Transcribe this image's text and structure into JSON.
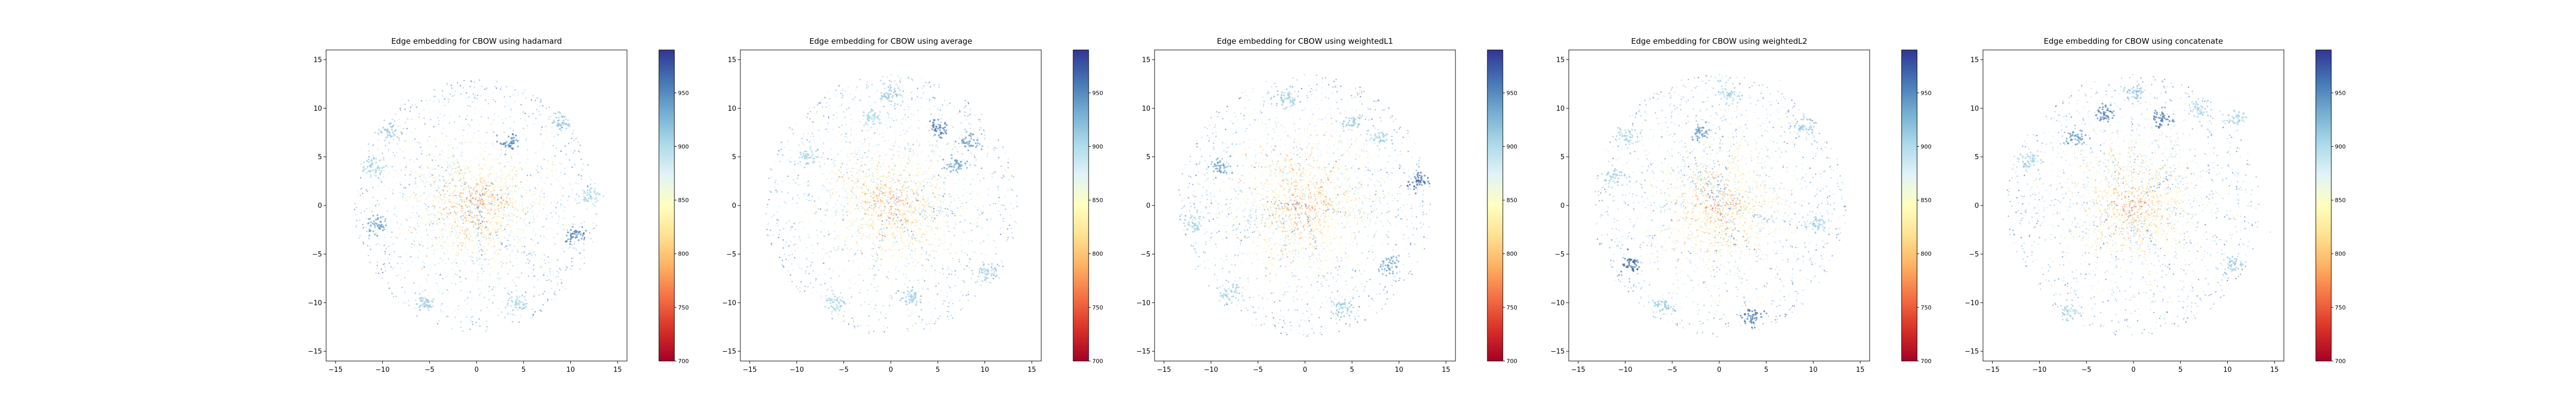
{
  "chart_data": [
    {
      "type": "scatter",
      "title": "Edge embedding for CBOW using hadamard",
      "xlim": [
        -16,
        16
      ],
      "ylim": [
        -16,
        16
      ],
      "xticks": [
        -15,
        -10,
        -5,
        0,
        5,
        10,
        15
      ],
      "yticks": [
        -15,
        -10,
        -5,
        0,
        5,
        10,
        15
      ],
      "colorbar": {
        "cmap": "RdYlBu",
        "range": [
          700,
          990
        ],
        "ticks": [
          700,
          750,
          800,
          850,
          900,
          950
        ]
      },
      "point_cloud": {
        "n_points": 1600,
        "radius": 13,
        "value_center": 790,
        "value_edge": 930
      },
      "clusters": [
        {
          "x": -9.5,
          "y": 7.5,
          "value": 910
        },
        {
          "x": -11,
          "y": 4,
          "value": 905
        },
        {
          "x": -10.5,
          "y": -2,
          "value": 940
        },
        {
          "x": -5.5,
          "y": -10,
          "value": 910
        },
        {
          "x": 4.5,
          "y": -10,
          "value": 905
        },
        {
          "x": 10.5,
          "y": -3,
          "value": 955
        },
        {
          "x": 9,
          "y": 8.5,
          "value": 910
        },
        {
          "x": 3.5,
          "y": 6.5,
          "value": 950
        },
        {
          "x": 12,
          "y": 1,
          "value": 905
        }
      ]
    },
    {
      "type": "scatter",
      "title": "Edge embedding for CBOW using average",
      "xlim": [
        -16,
        16
      ],
      "ylim": [
        -16,
        16
      ],
      "xticks": [
        -15,
        -10,
        -5,
        0,
        5,
        10,
        15
      ],
      "yticks": [
        -15,
        -10,
        -5,
        0,
        5,
        10,
        15
      ],
      "colorbar": {
        "cmap": "RdYlBu",
        "range": [
          700,
          990
        ],
        "ticks": [
          700,
          750,
          800,
          850,
          900,
          950
        ]
      },
      "point_cloud": {
        "n_points": 1700,
        "radius": 13.5,
        "value_center": 790,
        "value_edge": 930
      },
      "clusters": [
        {
          "x": 0,
          "y": 11.5,
          "value": 910
        },
        {
          "x": -2,
          "y": 9,
          "value": 905
        },
        {
          "x": 5,
          "y": 8,
          "value": 960
        },
        {
          "x": 8.5,
          "y": 6.5,
          "value": 940
        },
        {
          "x": -9,
          "y": 5,
          "value": 905
        },
        {
          "x": -6,
          "y": -10,
          "value": 905
        },
        {
          "x": 2,
          "y": -9.5,
          "value": 910
        },
        {
          "x": 10,
          "y": -7,
          "value": 905
        },
        {
          "x": 7,
          "y": 4,
          "value": 935
        }
      ]
    },
    {
      "type": "scatter",
      "title": "Edge embedding for CBOW using weightedL1",
      "xlim": [
        -16,
        16
      ],
      "ylim": [
        -16,
        16
      ],
      "xticks": [
        -15,
        -10,
        -5,
        0,
        5,
        10,
        15
      ],
      "yticks": [
        -15,
        -10,
        -5,
        0,
        5,
        10,
        15
      ],
      "colorbar": {
        "cmap": "RdYlBu",
        "range": [
          700,
          990
        ],
        "ticks": [
          700,
          750,
          800,
          850,
          900,
          950
        ]
      },
      "point_cloud": {
        "n_points": 1700,
        "radius": 13.5,
        "value_center": 790,
        "value_edge": 930
      },
      "clusters": [
        {
          "x": -2,
          "y": 11,
          "value": 910
        },
        {
          "x": 5,
          "y": 8.5,
          "value": 910
        },
        {
          "x": 8,
          "y": 7,
          "value": 905
        },
        {
          "x": 12,
          "y": 2.5,
          "value": 965
        },
        {
          "x": -12,
          "y": -2,
          "value": 905
        },
        {
          "x": -8,
          "y": -9,
          "value": 905
        },
        {
          "x": 4,
          "y": -10.5,
          "value": 910
        },
        {
          "x": -9,
          "y": 4,
          "value": 940
        },
        {
          "x": 9,
          "y": -6,
          "value": 935
        }
      ]
    },
    {
      "type": "scatter",
      "title": "Edge embedding for CBOW using weightedL2",
      "xlim": [
        -16,
        16
      ],
      "ylim": [
        -16,
        16
      ],
      "xticks": [
        -15,
        -10,
        -5,
        0,
        5,
        10,
        15
      ],
      "yticks": [
        -15,
        -10,
        -5,
        0,
        5,
        10,
        15
      ],
      "colorbar": {
        "cmap": "RdYlBu",
        "range": [
          700,
          990
        ],
        "ticks": [
          700,
          750,
          800,
          850,
          900,
          950
        ]
      },
      "point_cloud": {
        "n_points": 1700,
        "radius": 13.5,
        "value_center": 790,
        "value_edge": 930
      },
      "clusters": [
        {
          "x": -10,
          "y": 7,
          "value": 905
        },
        {
          "x": -11,
          "y": 3,
          "value": 910
        },
        {
          "x": -9.5,
          "y": -6,
          "value": 965
        },
        {
          "x": -6,
          "y": -10.5,
          "value": 910
        },
        {
          "x": 1,
          "y": 11.5,
          "value": 905
        },
        {
          "x": 9,
          "y": 8,
          "value": 910
        },
        {
          "x": 3.5,
          "y": -11.5,
          "value": 960
        },
        {
          "x": 10.5,
          "y": -2,
          "value": 905
        },
        {
          "x": -2,
          "y": 7.5,
          "value": 940
        }
      ]
    },
    {
      "type": "scatter",
      "title": "Edge embedding for CBOW using concatenate",
      "xlim": [
        -16,
        16
      ],
      "ylim": [
        -16,
        16
      ],
      "xticks": [
        -15,
        -10,
        -5,
        0,
        5,
        10,
        15
      ],
      "yticks": [
        -15,
        -10,
        -5,
        0,
        5,
        10,
        15
      ],
      "colorbar": {
        "cmap": "RdYlBu",
        "range": [
          700,
          990
        ],
        "ticks": [
          700,
          750,
          800,
          850,
          900,
          950
        ]
      },
      "point_cloud": {
        "n_points": 1700,
        "radius": 13.5,
        "value_center": 790,
        "value_edge": 930
      },
      "clusters": [
        {
          "x": 0,
          "y": 11.5,
          "value": 910
        },
        {
          "x": 3,
          "y": 9,
          "value": 960
        },
        {
          "x": 7,
          "y": 10,
          "value": 905
        },
        {
          "x": -3,
          "y": 9.5,
          "value": 955
        },
        {
          "x": -11,
          "y": 4.5,
          "value": 905
        },
        {
          "x": -7,
          "y": -11,
          "value": 905
        },
        {
          "x": 10.5,
          "y": -6,
          "value": 910
        },
        {
          "x": 11,
          "y": 9,
          "value": 905
        },
        {
          "x": -6,
          "y": 7,
          "value": 940
        }
      ]
    }
  ]
}
